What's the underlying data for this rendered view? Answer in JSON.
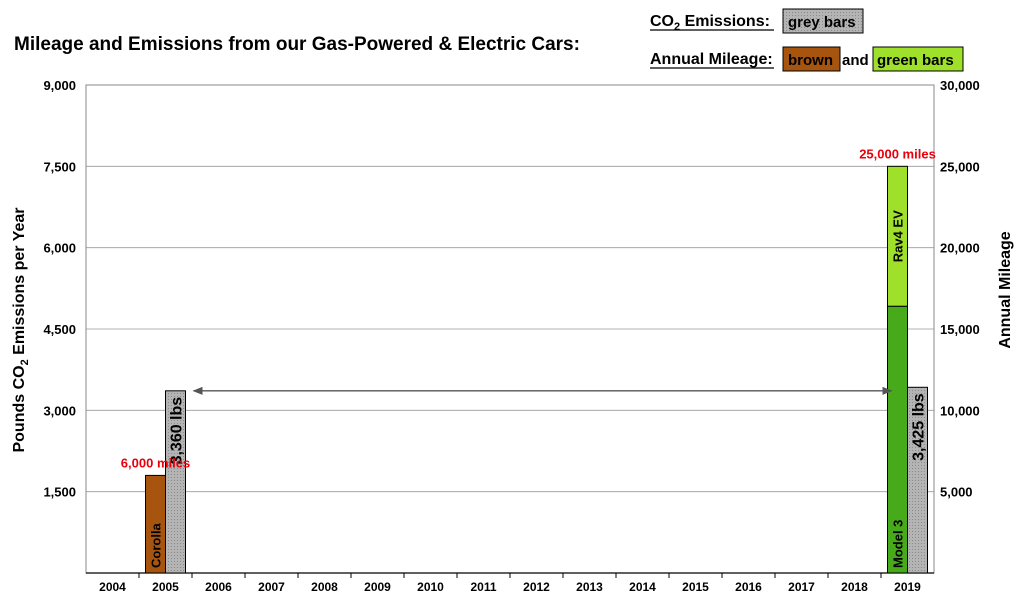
{
  "chart_data": {
    "type": "bar",
    "title": "Mileage and Emissions from our Gas-Powered & Electric Cars:",
    "categories": [
      "2004",
      "2005",
      "2006",
      "2007",
      "2008",
      "2009",
      "2010",
      "2011",
      "2012",
      "2013",
      "2014",
      "2015",
      "2016",
      "2017",
      "2018",
      "2019"
    ],
    "y_left": {
      "label_prefix": "Pounds CO",
      "label_sub": "2",
      "label_suffix": " Emissions per Year",
      "ylim": [
        0,
        9000
      ],
      "ticks": [
        "9,000",
        "7,500",
        "6,000",
        "4,500",
        "3,000",
        "1,500"
      ],
      "tick_values": [
        9000,
        7500,
        6000,
        4500,
        3000,
        1500
      ]
    },
    "y_right": {
      "label": "Annual Mileage",
      "ylim": [
        0,
        30000
      ],
      "ticks": [
        "30,000",
        "25,000",
        "20,000",
        "15,000",
        "10,000",
        "5,000"
      ],
      "tick_values": [
        30000,
        25000,
        20000,
        15000,
        10000,
        5000
      ]
    },
    "series": [
      {
        "name": "Corolla",
        "kind": "mileage",
        "color": "#a6540e",
        "points": [
          {
            "year": "2005",
            "low": 0,
            "high": 6000
          }
        ]
      },
      {
        "name": "Model 3",
        "kind": "mileage",
        "color": "#46aa1b",
        "points": [
          {
            "year": "2019",
            "low": 0,
            "high": 16400
          }
        ]
      },
      {
        "name": "Rav4 EV",
        "kind": "mileage",
        "color": "#9ee02a",
        "points": [
          {
            "year": "2019",
            "low": 16400,
            "high": 25000
          }
        ]
      },
      {
        "name": "CO2",
        "kind": "emissions",
        "color": "#b4b4b4",
        "points": [
          {
            "year": "2005",
            "value": 3360,
            "label": "3,360 lbs"
          },
          {
            "year": "2019",
            "value": 3425,
            "label": "3,425 lbs"
          }
        ]
      }
    ],
    "annotations": [
      {
        "year": "2005",
        "text": "6,000 miles",
        "at_miles": 6000
      },
      {
        "year": "2019",
        "text": "25,000 miles",
        "at_miles": 25000
      }
    ],
    "arrow": {
      "from_year": "2005",
      "to_year": "2019",
      "at_emissions": 3360
    },
    "legend": {
      "co2_prefix": "CO",
      "co2_sub": "2",
      "co2_suffix": " Emissions",
      "grey_label": "grey bars",
      "mileage_label": "Annual Mileage",
      "brown_label": "brown",
      "and_label": "and",
      "green_label": "green bars",
      "colon": ":"
    },
    "grid": true,
    "colors": {
      "grey": "#b4b4b4",
      "brown": "#a6540e",
      "green_dark": "#46aa1b",
      "green_light": "#9ee02a",
      "annotation": "#e8000b",
      "arrow": "#555555"
    }
  }
}
